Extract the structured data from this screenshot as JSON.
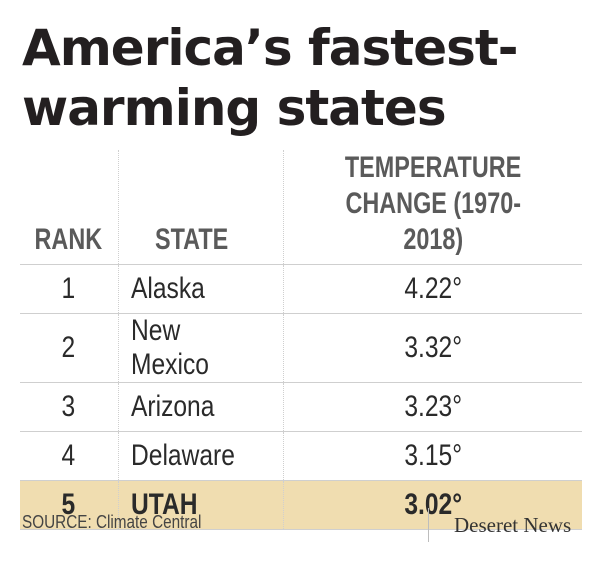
{
  "title_line1": "America’s fastest-",
  "title_line2": "warming states",
  "chart_data": {
    "type": "table",
    "title": "America’s fastest-warming states",
    "columns": [
      "RANK",
      "STATE",
      "TEMPERATURE CHANGE (1970-2018)"
    ],
    "header_lines": {
      "temp_line1": "TEMPERATURE",
      "temp_line2": "CHANGE (1970-2018)"
    },
    "rows": [
      {
        "rank": "1",
        "state": "Alaska",
        "change": "4.22°",
        "value": 4.22
      },
      {
        "rank": "2",
        "state": "New Mexico",
        "change": "3.32°",
        "value": 3.32
      },
      {
        "rank": "3",
        "state": "Arizona",
        "change": "3.23°",
        "value": 3.23
      },
      {
        "rank": "4",
        "state": "Delaware",
        "change": "3.15°",
        "value": 3.15
      },
      {
        "rank": "5",
        "state": "UTAH",
        "change": "3.02°",
        "value": 3.02,
        "highlighted": true
      }
    ],
    "highlight_color": "#f0ddb0"
  },
  "source": "SOURCE: Climate Central",
  "brand": "Deseret News"
}
